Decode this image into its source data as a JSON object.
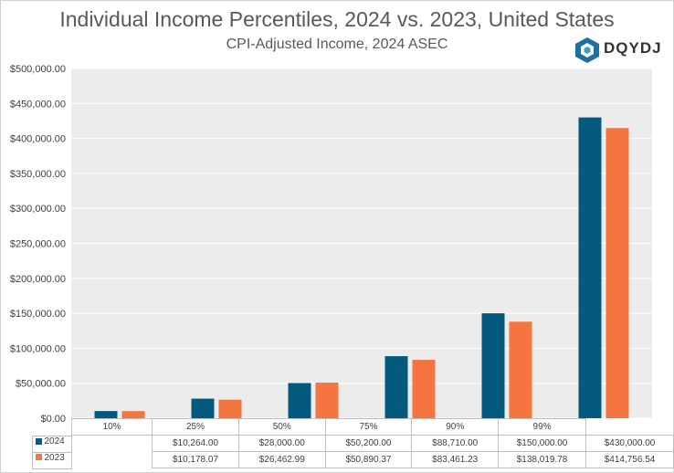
{
  "header": {
    "title": "Individual Income Percentiles, 2024 vs. 2023, United States",
    "subtitle": "CPI-Adjusted Income, 2024 ASEC",
    "logo_text": "DQYDJ"
  },
  "colors": {
    "series_2024": "#045a7e",
    "series_2023": "#f47540",
    "plot_bg": "#ececec",
    "grid": "#ffffff"
  },
  "chart_data": {
    "type": "bar",
    "title": "Individual Income Percentiles, 2024 vs. 2023, United States",
    "subtitle": "CPI-Adjusted Income, 2024 ASEC",
    "categories": [
      "10%",
      "25%",
      "50%",
      "75%",
      "90%",
      "99%"
    ],
    "series": [
      {
        "name": "2024",
        "values": [
          10264,
          28000,
          50200,
          88710,
          150000,
          430000
        ]
      },
      {
        "name": "2023",
        "values": [
          10178.07,
          26462.99,
          50890.37,
          83461.23,
          138019.78,
          414756.54
        ]
      }
    ],
    "value_labels": {
      "2024": [
        "$10,264.00",
        "$28,000.00",
        "$50,200.00",
        "$88,710.00",
        "$150,000.00",
        "$430,000.00"
      ],
      "2023": [
        "$10,178.07",
        "$26,462.99",
        "$50,890.37",
        "$83,461.23",
        "$138,019.78",
        "$414,756.54"
      ]
    },
    "ylim": [
      0,
      500000
    ],
    "y_ticks": [
      0,
      50000,
      100000,
      150000,
      200000,
      250000,
      300000,
      350000,
      400000,
      450000,
      500000
    ],
    "y_tick_labels": [
      "$0.00",
      "$50,000.00",
      "$100,000.00",
      "$150,000.00",
      "$200,000.00",
      "$250,000.00",
      "$300,000.00",
      "$350,000.00",
      "$400,000.00",
      "$450,000.00",
      "$500,000.00"
    ],
    "grid": true,
    "legend": "data-table"
  }
}
